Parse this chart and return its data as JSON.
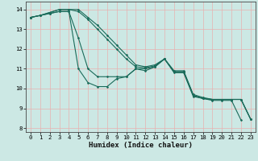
{
  "xlabel": "Humidex (Indice chaleur)",
  "ylabel": "",
  "xlim": [
    -0.5,
    23.5
  ],
  "ylim": [
    7.8,
    14.4
  ],
  "background_color": "#cce8e4",
  "grid_color_major": "#b0d8d4",
  "grid_color_minor": "#ddf0ee",
  "line_color": "#1a6b5a",
  "lines": [
    {
      "x": [
        0,
        1,
        2,
        3,
        4,
        5,
        6,
        7,
        8,
        9,
        10,
        11,
        12,
        13,
        14,
        15,
        16,
        17,
        18,
        19,
        20,
        21,
        22
      ],
      "y": [
        13.6,
        13.7,
        13.8,
        13.9,
        13.9,
        11.0,
        10.3,
        10.1,
        10.1,
        10.5,
        10.6,
        11.0,
        10.9,
        11.1,
        11.5,
        10.8,
        10.8,
        9.6,
        9.5,
        9.4,
        9.4,
        9.4,
        8.4
      ]
    },
    {
      "x": [
        0,
        1,
        2,
        3,
        4,
        5,
        6,
        7,
        8,
        9,
        10,
        11,
        12,
        13,
        14,
        15,
        16,
        17,
        18,
        19,
        20,
        21,
        22,
        23
      ],
      "y": [
        13.6,
        13.7,
        13.8,
        13.9,
        13.9,
        12.55,
        11.0,
        10.6,
        10.6,
        10.6,
        10.6,
        11.0,
        11.0,
        11.1,
        11.5,
        10.85,
        10.85,
        9.65,
        9.5,
        9.45,
        9.45,
        9.45,
        9.45,
        8.45
      ]
    },
    {
      "x": [
        0,
        1,
        2,
        3,
        4,
        5,
        6,
        7,
        8,
        9,
        10,
        11,
        12,
        13,
        14,
        15,
        16,
        17,
        18,
        19,
        20,
        21,
        22,
        23
      ],
      "y": [
        13.6,
        13.7,
        13.85,
        14.0,
        14.0,
        13.9,
        13.5,
        13.0,
        12.5,
        12.0,
        11.5,
        11.1,
        11.05,
        11.15,
        11.5,
        10.85,
        10.85,
        9.65,
        9.5,
        9.45,
        9.45,
        9.45,
        9.45,
        8.45
      ]
    },
    {
      "x": [
        0,
        1,
        2,
        3,
        4,
        5,
        6,
        7,
        8,
        9,
        10,
        11,
        12,
        13,
        14,
        15,
        16,
        17,
        18,
        19,
        20,
        21,
        22,
        23
      ],
      "y": [
        13.6,
        13.7,
        13.85,
        14.0,
        14.0,
        14.0,
        13.6,
        13.2,
        12.7,
        12.2,
        11.7,
        11.2,
        11.1,
        11.2,
        11.5,
        10.9,
        10.9,
        9.7,
        9.55,
        9.45,
        9.45,
        9.45,
        9.45,
        8.45
      ]
    }
  ],
  "xticks": [
    0,
    1,
    2,
    3,
    4,
    5,
    6,
    7,
    8,
    9,
    10,
    11,
    12,
    13,
    14,
    15,
    16,
    17,
    18,
    19,
    20,
    21,
    22,
    23
  ],
  "yticks": [
    8,
    9,
    10,
    11,
    12,
    13,
    14
  ],
  "tick_fontsize": 5.2,
  "label_fontsize": 6.5
}
